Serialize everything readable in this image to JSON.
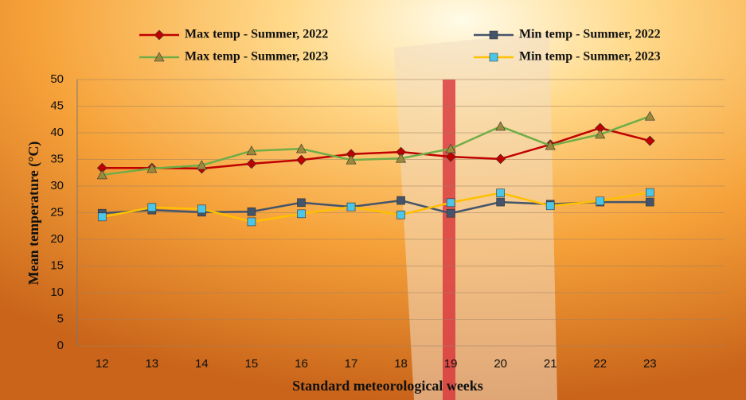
{
  "chart_data": {
    "type": "line",
    "x_label": "Standard meteorological weeks",
    "y_label": "Mean temperature (°C)",
    "categories": [
      "12",
      "13",
      "14",
      "15",
      "16",
      "17",
      "18",
      "19",
      "20",
      "21",
      "22",
      "23"
    ],
    "series": [
      {
        "name": "Max temp - Summer, 2022",
        "color": "#c00000",
        "marker": "diamond",
        "marker_color": "#c00000",
        "values": [
          33.4,
          33.4,
          33.3,
          34.2,
          34.9,
          36.0,
          36.4,
          35.5,
          35.1,
          37.8,
          40.9,
          38.5
        ]
      },
      {
        "name": "Min temp - Summer, 2022",
        "color": "#44546a",
        "marker": "square",
        "marker_color": "#44546a",
        "values": [
          24.9,
          25.5,
          25.1,
          25.2,
          26.9,
          26.1,
          27.3,
          24.9,
          27.0,
          26.6,
          27.0,
          27.0
        ]
      },
      {
        "name": "Max temp - Summer, 2023",
        "color": "#70ad47",
        "marker": "triangle",
        "marker_color": "#9c8a3a",
        "values": [
          32.1,
          33.3,
          33.9,
          36.6,
          37.0,
          34.9,
          35.2,
          37.0,
          41.2,
          37.6,
          39.7,
          43.1
        ]
      },
      {
        "name": "Min temp - Summer, 2023",
        "color": "#ffc000",
        "marker": "square",
        "marker_color": "#4bc5e8",
        "values": [
          24.2,
          26.0,
          25.7,
          23.3,
          24.8,
          26.1,
          24.6,
          26.9,
          28.7,
          26.3,
          27.2,
          28.8
        ]
      }
    ],
    "ylim": [
      0,
      50
    ],
    "yticks": [
      0,
      5,
      10,
      15,
      20,
      25,
      30,
      35,
      40,
      45,
      50
    ],
    "grid": true
  }
}
